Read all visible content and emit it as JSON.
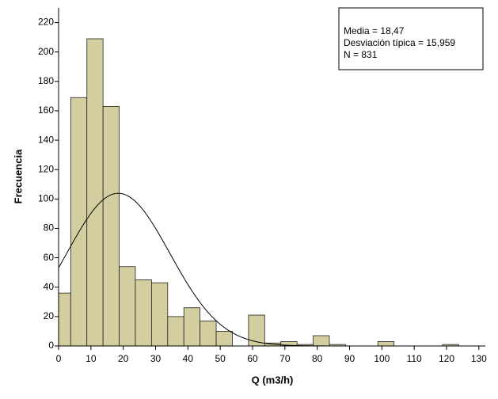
{
  "chart_data": {
    "type": "histogram",
    "x_label": "Q (m3/h)",
    "y_label": "Frecuencia",
    "bins": [
      0,
      3.75,
      8.75,
      13.75,
      18.75,
      23.75,
      28.75,
      33.75,
      38.75,
      43.75,
      48.75,
      53.75,
      58.75,
      63.75,
      68.75,
      73.75,
      78.75,
      83.75,
      88.75,
      93.75,
      98.75,
      103.75,
      108.75,
      113.75,
      118.75,
      123.75
    ],
    "values": [
      36,
      169,
      209,
      163,
      54,
      45,
      43,
      20,
      26,
      17,
      10,
      0,
      21,
      2,
      3,
      1,
      7,
      1,
      0,
      0,
      3,
      0,
      0,
      0,
      1
    ],
    "color": "#d3cea0",
    "xlim": [
      0,
      132
    ],
    "xticks": [
      0,
      10,
      20,
      30,
      40,
      50,
      60,
      70,
      80,
      90,
      100,
      110,
      120,
      130
    ],
    "ylim": [
      0,
      230
    ],
    "yticks": [
      0,
      20,
      40,
      60,
      80,
      100,
      120,
      140,
      160,
      180,
      200,
      220
    ],
    "stats": [
      {
        "value": 18.47,
        "label": "Media = 18,47"
      },
      {
        "value": 15.959,
        "label": "Desviación típica = 15,959"
      },
      {
        "value": 831,
        "label": "N = 831"
      }
    ]
  }
}
